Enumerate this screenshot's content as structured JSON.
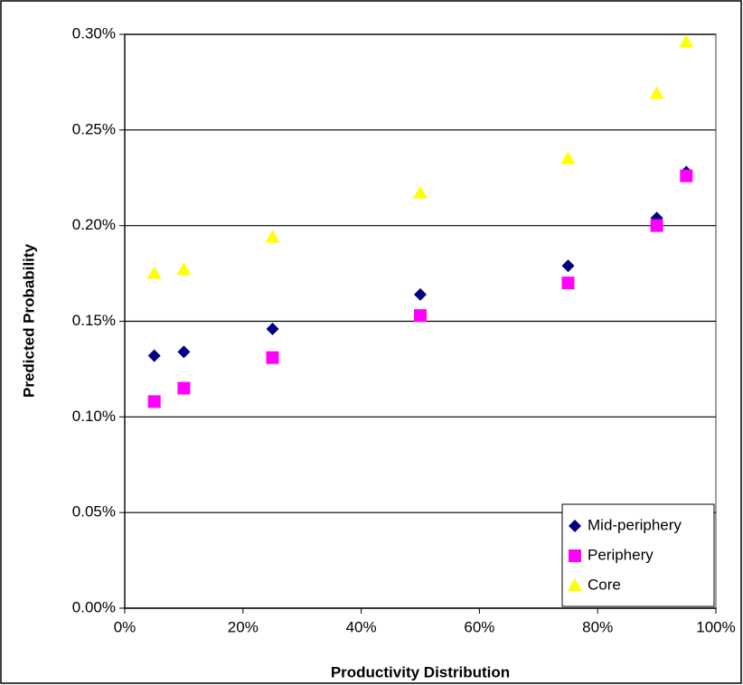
{
  "chart_data": {
    "type": "scatter",
    "xlabel": "Productivity Distribution",
    "ylabel": "Predicted Probability",
    "xlim": [
      0,
      100
    ],
    "xticks": [
      {
        "value": 0,
        "label": "0%"
      },
      {
        "value": 20,
        "label": "20%"
      },
      {
        "value": 40,
        "label": "40%"
      },
      {
        "value": 60,
        "label": "60%"
      },
      {
        "value": 80,
        "label": "80%"
      },
      {
        "value": 100,
        "label": "100%"
      }
    ],
    "ylim": [
      0,
      0.3
    ],
    "yticks": [
      {
        "value": 0,
        "label": "0.00%"
      },
      {
        "value": 0.05,
        "label": "0.05%"
      },
      {
        "value": 0.1,
        "label": "0.10%"
      },
      {
        "value": 0.15,
        "label": "0.15%"
      },
      {
        "value": 0.2,
        "label": "0.20%"
      },
      {
        "value": 0.25,
        "label": "0.25%"
      },
      {
        "value": 0.3,
        "label": "0.30%"
      }
    ],
    "grid": true,
    "legend": "lower right",
    "series": [
      {
        "name": "Mid-periphery",
        "color": "#000080",
        "marker": "diamond",
        "x": [
          5,
          10,
          25,
          50,
          75,
          90,
          95
        ],
        "values": [
          0.132,
          0.134,
          0.146,
          0.164,
          0.179,
          0.204,
          0.228
        ]
      },
      {
        "name": "Periphery",
        "color": "#ff00ff",
        "marker": "square",
        "x": [
          5,
          10,
          25,
          50,
          75,
          90,
          95
        ],
        "values": [
          0.108,
          0.115,
          0.131,
          0.153,
          0.17,
          0.2,
          0.226
        ]
      },
      {
        "name": "Core",
        "color": "#ffff00",
        "marker": "triangle",
        "x": [
          5,
          10,
          25,
          50,
          75,
          90,
          95
        ],
        "values": [
          0.175,
          0.177,
          0.194,
          0.217,
          0.235,
          0.269,
          0.296
        ]
      }
    ]
  }
}
